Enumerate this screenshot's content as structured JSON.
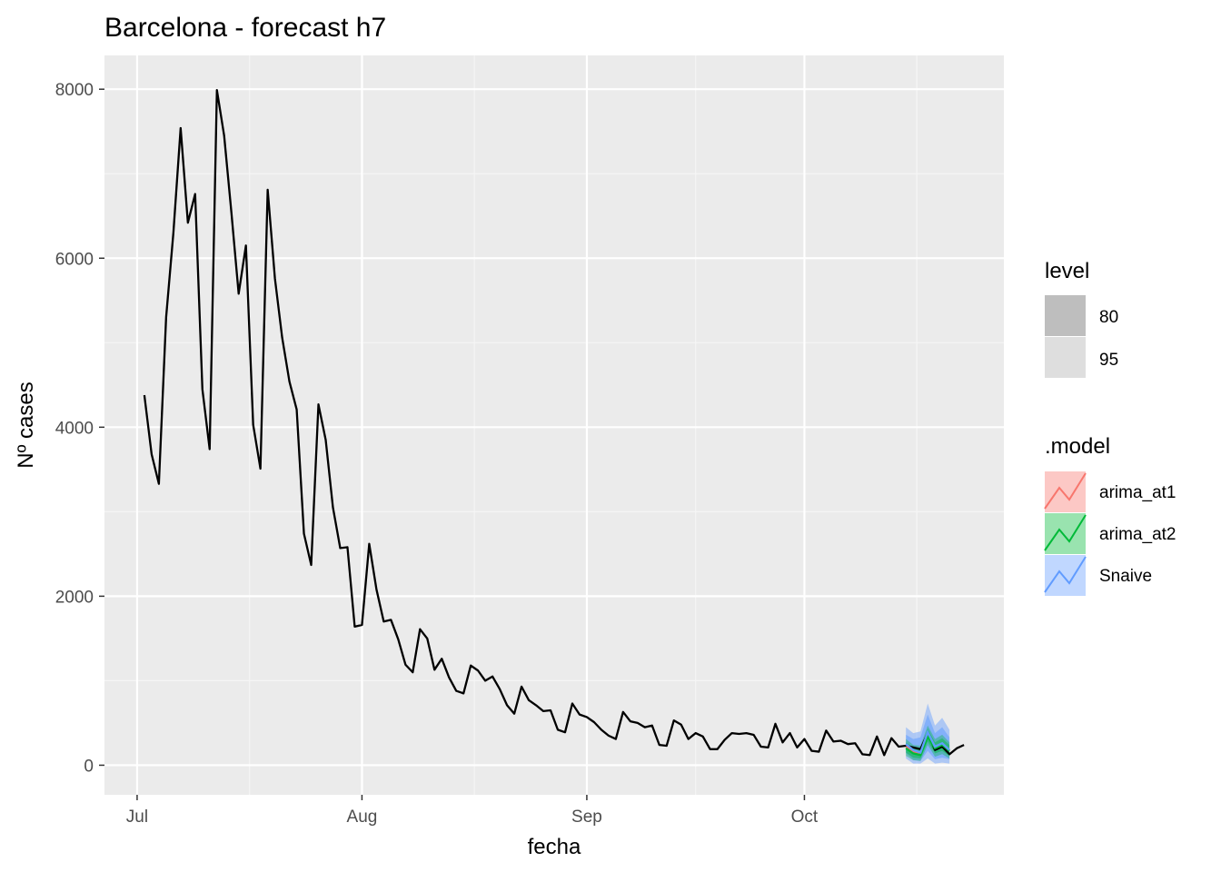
{
  "chart_data": {
    "type": "line",
    "title": "Barcelona - forecast h7",
    "xlabel": "fecha",
    "ylabel": "Nº cases",
    "x_ticks": [
      {
        "label": "Jul",
        "day": 0
      },
      {
        "label": "Aug",
        "day": 31
      },
      {
        "label": "Sep",
        "day": 62
      },
      {
        "label": "Oct",
        "day": 92
      }
    ],
    "y_ticks": [
      0,
      2000,
      4000,
      6000,
      8000
    ],
    "xlim_days": [
      -4.5,
      119.5
    ],
    "ylim": [
      -350,
      8400
    ],
    "grid": true,
    "legend_position": "right",
    "colors": {
      "panel": "#EBEBEB",
      "grid_major": "#FFFFFF",
      "grid_minor": "#F5F5F5",
      "observed": "#000000",
      "arima_at1": "#F8766D",
      "arima_at2": "#00BA38",
      "snaive": "#619CFF",
      "level_80": "#BEBEBE",
      "level_95": "#DEDEDE"
    },
    "observed_series": {
      "name": "observed",
      "start_day": 1,
      "values": [
        4380,
        3680,
        3330,
        5300,
        6300,
        7540,
        6420,
        6760,
        4450,
        3740,
        7990,
        7450,
        6540,
        5580,
        6150,
        4030,
        3510,
        6810,
        5760,
        5060,
        4540,
        4210,
        2740,
        2370,
        4270,
        3850,
        3050,
        2570,
        2580,
        1640,
        1660,
        2620,
        2080,
        1700,
        1720,
        1490,
        1190,
        1100,
        1610,
        1500,
        1130,
        1260,
        1040,
        880,
        850,
        1180,
        1120,
        1000,
        1050,
        900,
        710,
        610,
        930,
        770,
        710,
        640,
        650,
        420,
        390,
        730,
        600,
        570,
        510,
        420,
        350,
        310,
        630,
        520,
        500,
        450,
        470,
        240,
        230,
        530,
        480,
        310,
        380,
        340,
        190,
        190,
        300,
        380,
        370,
        380,
        360,
        220,
        210,
        490,
        270,
        380,
        210,
        310,
        170,
        160,
        410,
        280,
        290,
        250,
        260,
        130,
        120,
        340,
        120,
        320,
        220,
        230,
        210,
        190,
        380,
        180,
        220,
        130,
        200,
        240
      ]
    },
    "forecast_start_day": 106,
    "forecasts": [
      {
        "name": "arima_at1",
        "values": [
          220,
          160,
          140,
          360,
          210,
          250,
          170
        ]
      },
      {
        "name": "arima_at2",
        "values": [
          200,
          140,
          120,
          340,
          200,
          240,
          170
        ]
      },
      {
        "name": "Snaive",
        "values": [
          250,
          180,
          150,
          390,
          220,
          260,
          180
        ]
      }
    ],
    "snaive_intervals": {
      "p80": [
        [
          140,
          360
        ],
        [
          60,
          310
        ],
        [
          50,
          330
        ],
        [
          170,
          600
        ],
        [
          70,
          380
        ],
        [
          90,
          450
        ],
        [
          70,
          330
        ]
      ],
      "p95": [
        [
          80,
          450
        ],
        [
          20,
          380
        ],
        [
          20,
          400
        ],
        [
          80,
          730
        ],
        [
          20,
          470
        ],
        [
          30,
          560
        ],
        [
          20,
          420
        ]
      ]
    },
    "arima_intervals": {
      "p80": [
        [
          150,
          270
        ],
        [
          90,
          210
        ],
        [
          80,
          200
        ],
        [
          280,
          430
        ],
        [
          140,
          270
        ],
        [
          170,
          320
        ],
        [
          110,
          240
        ]
      ],
      "p95": [
        [
          110,
          310
        ],
        [
          60,
          240
        ],
        [
          50,
          230
        ],
        [
          240,
          470
        ],
        [
          100,
          310
        ],
        [
          130,
          360
        ],
        [
          80,
          270
        ]
      ]
    },
    "legend": {
      "level_title": "level",
      "level_items": [
        "80",
        "95"
      ],
      "model_title": ".model",
      "model_items": [
        "arima_at1",
        "arima_at2",
        "Snaive"
      ]
    }
  }
}
